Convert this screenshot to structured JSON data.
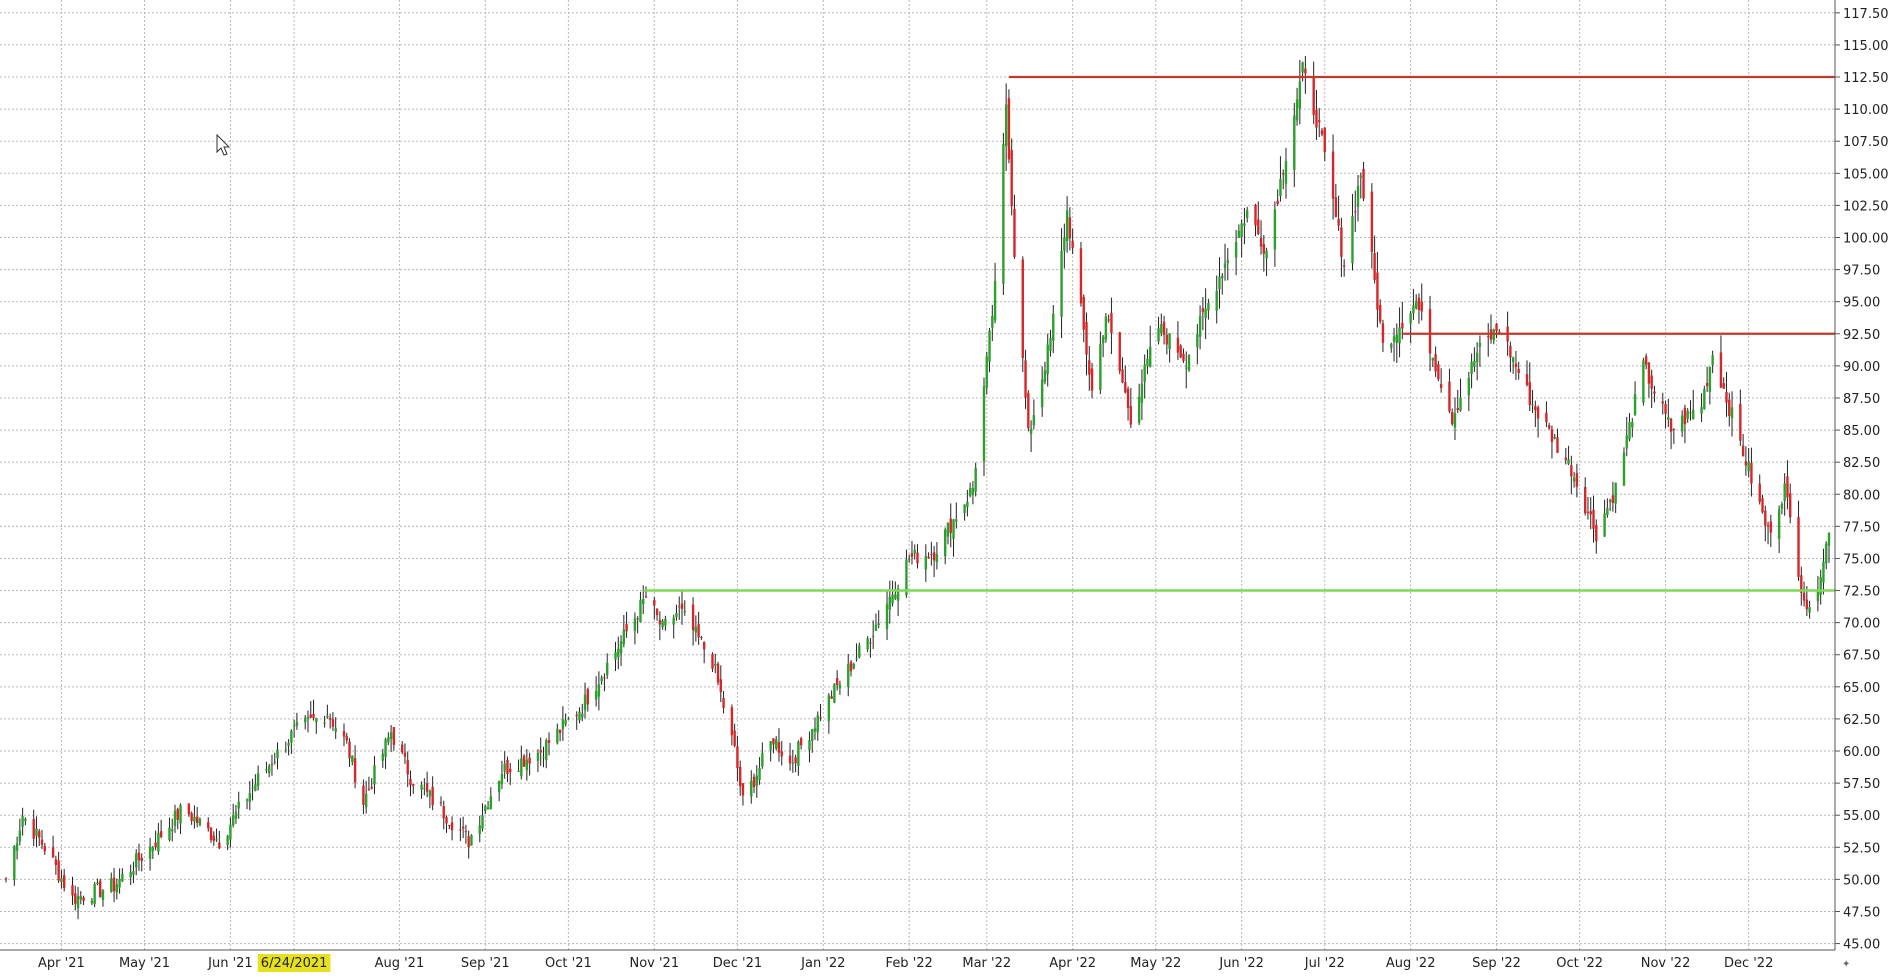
{
  "chart_data": {
    "type": "candlestick",
    "title": "",
    "xlabel": "",
    "ylabel": "",
    "x_range": [
      "2021-03-12",
      "2022-12-30"
    ],
    "ylim": [
      44.5,
      118.5
    ],
    "y_tick_values": [
      45,
      47.5,
      50,
      52.5,
      55,
      57.5,
      60,
      62.5,
      65,
      67.5,
      70,
      72.5,
      75,
      77.5,
      80,
      82.5,
      85,
      87.5,
      90,
      92.5,
      95,
      97.5,
      100,
      102.5,
      105,
      107.5,
      110,
      112.5,
      115,
      117.5
    ],
    "y_tick_labels": [
      "45.00",
      "47.50",
      "50.00",
      "52.50",
      "55.00",
      "57.50",
      "60.00",
      "62.50",
      "65.00",
      "67.50",
      "70.00",
      "72.50",
      "75.00",
      "77.50",
      "80.00",
      "82.50",
      "85.00",
      "87.50",
      "90.00",
      "92.50",
      "95.00",
      "97.50",
      "100.00",
      "102.50",
      "105.00",
      "107.50",
      "110.00",
      "112.50",
      "115.00",
      "117.50"
    ],
    "x_ticks": [
      {
        "date": "2021-04-01",
        "label": "Apr '21"
      },
      {
        "date": "2021-05-01",
        "label": "May '21"
      },
      {
        "date": "2021-06-01",
        "label": "Jun '21"
      },
      {
        "date": "2021-08-01",
        "label": "Aug '21"
      },
      {
        "date": "2021-09-01",
        "label": "Sep '21"
      },
      {
        "date": "2021-10-01",
        "label": "Oct '21"
      },
      {
        "date": "2021-11-01",
        "label": "Nov '21"
      },
      {
        "date": "2021-12-01",
        "label": "Dec '21"
      },
      {
        "date": "2022-01-01",
        "label": "Jan '22"
      },
      {
        "date": "2022-02-01",
        "label": "Feb '22"
      },
      {
        "date": "2022-03-01",
        "label": "Mar '22"
      },
      {
        "date": "2022-04-01",
        "label": "Apr '22"
      },
      {
        "date": "2022-05-01",
        "label": "May '22"
      },
      {
        "date": "2022-06-01",
        "label": "Jun '22"
      },
      {
        "date": "2022-07-01",
        "label": "Jul '22"
      },
      {
        "date": "2022-08-01",
        "label": "Aug '22"
      },
      {
        "date": "2022-09-01",
        "label": "Sep '22"
      },
      {
        "date": "2022-10-01",
        "label": "Oct '22"
      },
      {
        "date": "2022-11-01",
        "label": "Nov '22"
      },
      {
        "date": "2022-12-01",
        "label": "Dec '22"
      }
    ],
    "crosshair_date": {
      "date": "2021-06-24",
      "label": "6/24/2021"
    },
    "grid": true,
    "colors": {
      "up": "#2ca02c",
      "down": "#d62728",
      "wick": "#222222",
      "resistance": "#c0392b",
      "support": "#7ed957",
      "highlight": "#e6e01f"
    },
    "horizontal_lines": [
      {
        "kind": "resistance",
        "value": 112.5,
        "from": "2022-03-09",
        "to": "2022-12-30"
      },
      {
        "kind": "resistance",
        "value": 92.5,
        "from": "2022-07-29",
        "to": "2022-12-30"
      },
      {
        "kind": "support",
        "value": 72.5,
        "from": "2021-10-28",
        "to": "2022-12-30"
      }
    ],
    "close_anchors": [
      [
        "2021-03-12",
        50.0
      ],
      [
        "2021-03-18",
        55.0
      ],
      [
        "2021-03-26",
        52.5
      ],
      [
        "2021-04-05",
        48.5
      ],
      [
        "2021-04-20",
        49.5
      ],
      [
        "2021-05-03",
        52.5
      ],
      [
        "2021-05-15",
        55.5
      ],
      [
        "2021-05-28",
        53.0
      ],
      [
        "2021-06-10",
        57.5
      ],
      [
        "2021-06-24",
        61.5
      ],
      [
        "2021-07-06",
        63.0
      ],
      [
        "2021-07-13",
        60.5
      ],
      [
        "2021-07-19",
        56.0
      ],
      [
        "2021-07-29",
        61.5
      ],
      [
        "2021-08-05",
        58.0
      ],
      [
        "2021-08-18",
        55.0
      ],
      [
        "2021-08-26",
        53.0
      ],
      [
        "2021-09-07",
        58.5
      ],
      [
        "2021-09-21",
        60.0
      ],
      [
        "2021-10-06",
        63.5
      ],
      [
        "2021-10-20",
        68.5
      ],
      [
        "2021-10-29",
        72.0
      ],
      [
        "2021-11-04",
        69.5
      ],
      [
        "2021-11-10",
        71.0
      ],
      [
        "2021-11-22",
        67.0
      ],
      [
        "2021-11-30",
        60.0
      ],
      [
        "2021-12-03",
        56.0
      ],
      [
        "2021-12-14",
        61.0
      ],
      [
        "2021-12-20",
        59.0
      ],
      [
        "2022-01-03",
        64.0
      ],
      [
        "2022-01-18",
        69.0
      ],
      [
        "2022-02-01",
        75.0
      ],
      [
        "2022-02-10",
        75.5
      ],
      [
        "2022-02-24",
        80.5
      ],
      [
        "2022-03-04",
        96.0
      ],
      [
        "2022-03-08",
        110.5
      ],
      [
        "2022-03-11",
        99.0
      ],
      [
        "2022-03-16",
        84.5
      ],
      [
        "2022-03-24",
        92.0
      ],
      [
        "2022-03-30",
        102.0
      ],
      [
        "2022-04-08",
        88.0
      ],
      [
        "2022-04-13",
        94.0
      ],
      [
        "2022-04-22",
        86.0
      ],
      [
        "2022-05-02",
        93.0
      ],
      [
        "2022-05-12",
        90.5
      ],
      [
        "2022-05-24",
        97.0
      ],
      [
        "2022-06-03",
        102.0
      ],
      [
        "2022-06-10",
        99.0
      ],
      [
        "2022-06-23",
        113.0
      ],
      [
        "2022-06-29",
        108.5
      ],
      [
        "2022-07-08",
        98.0
      ],
      [
        "2022-07-14",
        105.0
      ],
      [
        "2022-07-22",
        91.5
      ],
      [
        "2022-08-03",
        95.0
      ],
      [
        "2022-08-16",
        86.0
      ],
      [
        "2022-08-25",
        91.0
      ],
      [
        "2022-09-02",
        93.0
      ],
      [
        "2022-09-14",
        87.0
      ],
      [
        "2022-09-28",
        82.0
      ],
      [
        "2022-10-07",
        77.0
      ],
      [
        "2022-10-14",
        80.5
      ],
      [
        "2022-10-24",
        90.0
      ],
      [
        "2022-11-03",
        85.0
      ],
      [
        "2022-11-14",
        87.0
      ],
      [
        "2022-11-18",
        91.0
      ],
      [
        "2022-11-28",
        84.0
      ],
      [
        "2022-12-08",
        77.0
      ],
      [
        "2022-12-14",
        80.5
      ],
      [
        "2022-12-20",
        73.0
      ],
      [
        "2022-12-23",
        70.5
      ],
      [
        "2022-12-30",
        77.0
      ]
    ]
  }
}
